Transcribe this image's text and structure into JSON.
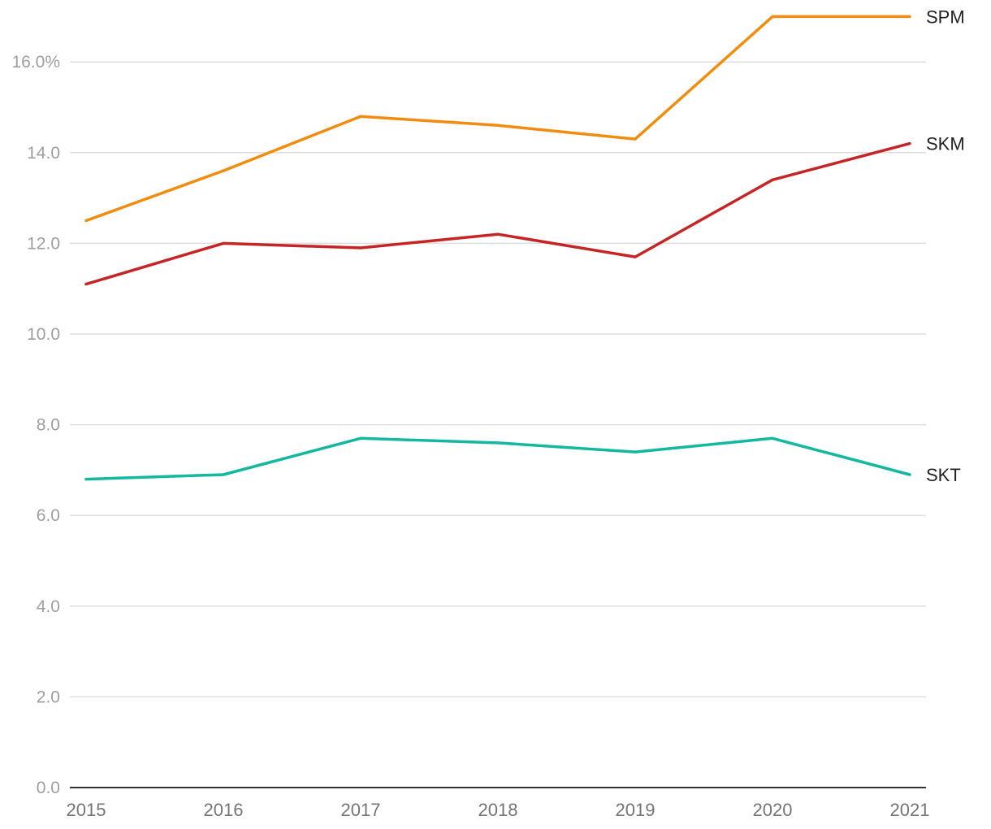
{
  "chart_data": {
    "type": "line",
    "title": "",
    "xlabel": "",
    "ylabel": "",
    "x": [
      2015,
      2016,
      2017,
      2018,
      2019,
      2020,
      2021
    ],
    "x_tick_labels": [
      "2015",
      "2016",
      "2017",
      "2018",
      "2019",
      "2020",
      "2021"
    ],
    "ylim": [
      0,
      16.8
    ],
    "y_ticks": [
      0,
      2,
      4,
      6,
      8,
      10,
      12,
      14,
      16
    ],
    "y_tick_labels": [
      "0.0",
      "2.0",
      "4.0",
      "6.0",
      "8.0",
      "10.0",
      "12.0",
      "14.0",
      "16.0%"
    ],
    "grid": true,
    "series": [
      {
        "name": "SPM",
        "color": "#f28c0f",
        "values": [
          12.5,
          13.6,
          14.8,
          14.6,
          14.3,
          17.0,
          17.0
        ]
      },
      {
        "name": "SKM",
        "color": "#c62525",
        "values": [
          11.1,
          12.0,
          11.9,
          12.2,
          11.7,
          13.4,
          14.2
        ]
      },
      {
        "name": "SKT",
        "color": "#14b8a0",
        "values": [
          6.8,
          6.9,
          7.7,
          7.6,
          7.4,
          7.7,
          6.9
        ]
      }
    ]
  }
}
